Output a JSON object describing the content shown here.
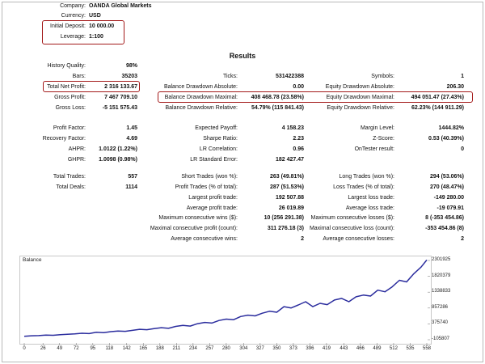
{
  "header": {
    "company_label": "Company:",
    "company": "OANDA Global Markets",
    "currency_label": "Currency:",
    "currency": "USD",
    "deposit_label": "Initial Deposit:",
    "deposit": "10 000.00",
    "leverage_label": "Leverage:",
    "leverage": "1:100"
  },
  "results_title": "Results",
  "col1": [
    {
      "label": "History Quality:",
      "value": "98%"
    },
    {
      "label": "Bars:",
      "value": "35203"
    },
    {
      "label": "Total Net Profit:",
      "value": "2 316 133.67"
    },
    {
      "label": "Gross Profit:",
      "value": "7 467 709.10"
    },
    {
      "label": "Gross Loss:",
      "value": "-5 151 575.43"
    },
    {
      "label": "Profit Factor:",
      "value": "1.45"
    },
    {
      "label": "Recovery Factor:",
      "value": "4.69"
    },
    {
      "label": "AHPR:",
      "value": "1.0122 (1.22%)"
    },
    {
      "label": "GHPR:",
      "value": "1.0098 (0.98%)"
    },
    {
      "label": "Total Trades:",
      "value": "557"
    },
    {
      "label": "Total Deals:",
      "value": "1114"
    }
  ],
  "col2": [
    {
      "label": "Ticks:",
      "value": "531422388"
    },
    {
      "label": "Balance Drawdown Absolute:",
      "value": "0.00"
    },
    {
      "label": "Balance Drawdown Maximal:",
      "value": "408 468.78 (23.58%)"
    },
    {
      "label": "Balance Drawdown Relative:",
      "value": "54.79% (115 841.43)"
    },
    {
      "label": "Expected Payoff:",
      "value": "4 158.23"
    },
    {
      "label": "Sharpe Ratio:",
      "value": "2.23"
    },
    {
      "label": "LR Correlation:",
      "value": "0.96"
    },
    {
      "label": "LR Standard Error:",
      "value": "182 427.47"
    },
    {
      "label": "Short Trades (won %):",
      "value": "263 (49.81%)"
    },
    {
      "label": "Profit Trades (% of total):",
      "value": "287 (51.53%)"
    },
    {
      "label": "Largest profit trade:",
      "value": "192 507.88"
    },
    {
      "label": "Average profit trade:",
      "value": "26 019.89"
    },
    {
      "label": "Maximum consecutive wins ($):",
      "value": "10 (256 291.38)"
    },
    {
      "label": "Maximal consecutive profit (count):",
      "value": "311 276.18 (3)"
    },
    {
      "label": "Average consecutive wins:",
      "value": "2"
    }
  ],
  "col3": [
    {
      "label": "Symbols:",
      "value": "1"
    },
    {
      "label": "Equity Drawdown Absolute:",
      "value": "206.30"
    },
    {
      "label": "Equity Drawdown Maximal:",
      "value": "494 051.47 (27.43%)"
    },
    {
      "label": "Equity Drawdown Relative:",
      "value": "62.23% (144 911.29)"
    },
    {
      "label": "Margin Level:",
      "value": "1444.82%"
    },
    {
      "label": "Z-Score:",
      "value": "0.53 (40.39%)"
    },
    {
      "label": "OnTester result:",
      "value": "0"
    },
    {
      "label": "Long Trades (won %):",
      "value": "294 (53.06%)"
    },
    {
      "label": "Loss Trades (% of total):",
      "value": "270 (48.47%)"
    },
    {
      "label": "Largest loss trade:",
      "value": "-149 280.00"
    },
    {
      "label": "Average loss trade:",
      "value": "-19 079.91"
    },
    {
      "label": "Maximum consecutive losses ($):",
      "value": "8 (-353 454.86)"
    },
    {
      "label": "Maximal consecutive loss (count):",
      "value": "-353 454.86 (8)"
    },
    {
      "label": "Average consecutive losses:",
      "value": "2"
    }
  ],
  "chart_data": {
    "type": "line",
    "title": "Balance",
    "xlabel": "",
    "ylabel": "",
    "x_ticks": [
      "0",
      "26",
      "49",
      "72",
      "95",
      "118",
      "142",
      "165",
      "188",
      "211",
      "234",
      "257",
      "280",
      "304",
      "327",
      "350",
      "373",
      "396",
      "419",
      "443",
      "466",
      "489",
      "512",
      "535",
      "558"
    ],
    "y_ticks": [
      "2301925",
      "1820379",
      "1338833",
      "857286",
      "375740",
      "-105807"
    ],
    "xlim": [
      0,
      558
    ],
    "ylim": [
      -105807,
      2301925
    ],
    "color": "#2b2d9e",
    "series": [
      {
        "x": [
          0,
          10,
          20,
          30,
          40,
          50,
          60,
          70,
          80,
          90,
          100,
          110,
          120,
          130,
          140,
          150,
          160,
          170,
          180,
          190,
          200,
          210,
          220,
          230,
          240,
          250,
          260,
          270,
          280,
          290,
          300,
          310,
          320,
          330,
          340,
          350,
          360,
          370,
          380,
          390,
          400,
          410,
          420,
          430,
          440,
          450,
          460,
          470,
          480,
          490,
          500,
          510,
          520,
          530,
          540,
          550,
          558
        ],
        "y": [
          0,
          15000,
          20000,
          35000,
          30000,
          50000,
          60000,
          70000,
          90000,
          80000,
          120000,
          110000,
          140000,
          160000,
          150000,
          180000,
          210000,
          200000,
          230000,
          260000,
          240000,
          300000,
          330000,
          310000,
          380000,
          420000,
          400000,
          480000,
          520000,
          500000,
          600000,
          640000,
          620000,
          700000,
          760000,
          730000,
          900000,
          860000,
          950000,
          1050000,
          900000,
          1000000,
          960000,
          1100000,
          1150000,
          1050000,
          1200000,
          1250000,
          1220000,
          1400000,
          1350000,
          1500000,
          1700000,
          1650000,
          1900000,
          2100000,
          2316133
        ]
      }
    ]
  }
}
